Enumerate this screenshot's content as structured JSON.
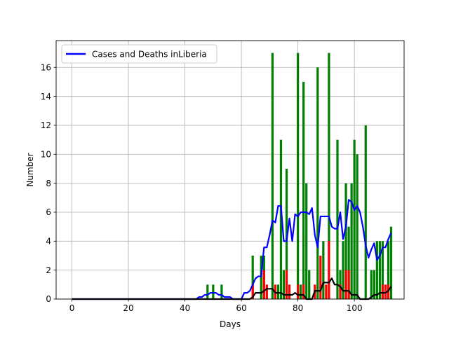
{
  "chart_data": {
    "type": "bar",
    "title": "",
    "xlabel": "Days",
    "ylabel": "Number",
    "xlim": [
      -5.6,
      117.6
    ],
    "ylim": [
      0,
      17.85
    ],
    "xticks": [
      0,
      20,
      40,
      60,
      80,
      100
    ],
    "yticks": [
      0,
      2,
      4,
      6,
      8,
      10,
      12,
      14,
      16
    ],
    "grid": true,
    "legend": {
      "position": "top-left",
      "label": "Cases and Deaths inLiberia"
    },
    "colors": {
      "cases": "#008000",
      "deaths": "#ff0000",
      "cases_avg": "#0000ff",
      "deaths_avg": "#000000"
    },
    "series": [
      {
        "name": "cases",
        "kind": "bar",
        "x": [
          48,
          50,
          53,
          64,
          67,
          68,
          71,
          73,
          74,
          75,
          76,
          80,
          81,
          82,
          83,
          84,
          87,
          89,
          91,
          94,
          95,
          96,
          97,
          98,
          99,
          100,
          101,
          104,
          106,
          107,
          108,
          109,
          110,
          112,
          113
        ],
        "values": [
          1,
          1,
          1,
          3,
          3,
          3,
          17,
          1,
          11,
          2,
          9,
          17,
          1,
          15,
          8,
          2,
          16,
          4,
          17,
          11,
          2,
          4,
          8,
          5,
          8,
          11,
          10,
          12,
          2,
          2,
          4,
          4,
          4,
          4,
          5
        ]
      },
      {
        "name": "deaths",
        "kind": "bar",
        "x": [
          64,
          68,
          69,
          72,
          76,
          77,
          80,
          82,
          86,
          88,
          90,
          91,
          95,
          97,
          98,
          110,
          111,
          112
        ],
        "values": [
          1,
          2,
          1,
          1,
          2,
          1,
          1,
          1,
          1,
          3,
          1,
          4,
          1,
          2,
          2,
          1,
          1,
          1
        ]
      },
      {
        "name": "Cases and Deaths inLiberia",
        "kind": "line",
        "x": [
          0,
          44,
          45,
          46,
          47,
          48,
          49,
          50,
          51,
          52,
          53,
          54,
          55,
          56,
          57,
          58,
          59,
          60,
          61,
          62,
          63,
          64,
          65,
          66,
          67,
          68,
          69,
          70,
          71,
          72,
          73,
          74,
          75,
          76,
          77,
          78,
          79,
          80,
          81,
          82,
          83,
          84,
          85,
          86,
          87,
          88,
          89,
          90,
          91,
          92,
          93,
          94,
          95,
          96,
          97,
          98,
          99,
          100,
          101,
          102,
          103,
          104,
          105,
          106,
          107,
          108,
          109,
          110,
          111,
          112,
          113
        ],
        "values": [
          0,
          0,
          0.14,
          0.14,
          0.29,
          0.29,
          0.43,
          0.43,
          0.43,
          0.29,
          0.29,
          0.14,
          0.14,
          0.14,
          0,
          0,
          0,
          0,
          0.43,
          0.43,
          0.57,
          1.0,
          1.43,
          1.57,
          1.57,
          3.57,
          3.57,
          4.43,
          5.43,
          5.29,
          6.43,
          6.43,
          4.0,
          4.0,
          5.57,
          4.0,
          5.86,
          5.71,
          6.0,
          6.0,
          6.0,
          5.86,
          6.29,
          4.43,
          3.57,
          5.71,
          5.71,
          5.71,
          5.71,
          5.0,
          4.86,
          4.86,
          6.0,
          4.14,
          5.0,
          6.86,
          6.71,
          6.14,
          6.43,
          6.0,
          5.0,
          3.71,
          2.86,
          3.43,
          3.86,
          2.71,
          3.0,
          3.57,
          3.57,
          4.14,
          4.57
        ]
      },
      {
        "name": "deaths-average",
        "kind": "line",
        "x": [
          0,
          62,
          63,
          64,
          65,
          66,
          67,
          68,
          69,
          70,
          71,
          72,
          73,
          74,
          75,
          76,
          77,
          78,
          79,
          80,
          81,
          82,
          83,
          84,
          85,
          86,
          87,
          88,
          89,
          90,
          91,
          92,
          93,
          94,
          95,
          96,
          97,
          98,
          99,
          100,
          101,
          102,
          103,
          104,
          105,
          106,
          107,
          108,
          109,
          110,
          111,
          112,
          113
        ],
        "values": [
          0,
          0,
          0,
          0.14,
          0.43,
          0.43,
          0.43,
          0.57,
          0.71,
          0.71,
          0.71,
          0.43,
          0.43,
          0.43,
          0.29,
          0.29,
          0.29,
          0.29,
          0.43,
          0.29,
          0.29,
          0.29,
          0,
          0,
          0,
          0.57,
          0.57,
          0.57,
          1.14,
          1.14,
          1.14,
          1.43,
          1.0,
          1.0,
          0.86,
          0.57,
          0.57,
          0.57,
          0.29,
          0.29,
          0.29,
          0,
          0,
          0,
          0,
          0.14,
          0.29,
          0.29,
          0.43,
          0.43,
          0.43,
          0.57,
          0.86
        ]
      }
    ]
  }
}
